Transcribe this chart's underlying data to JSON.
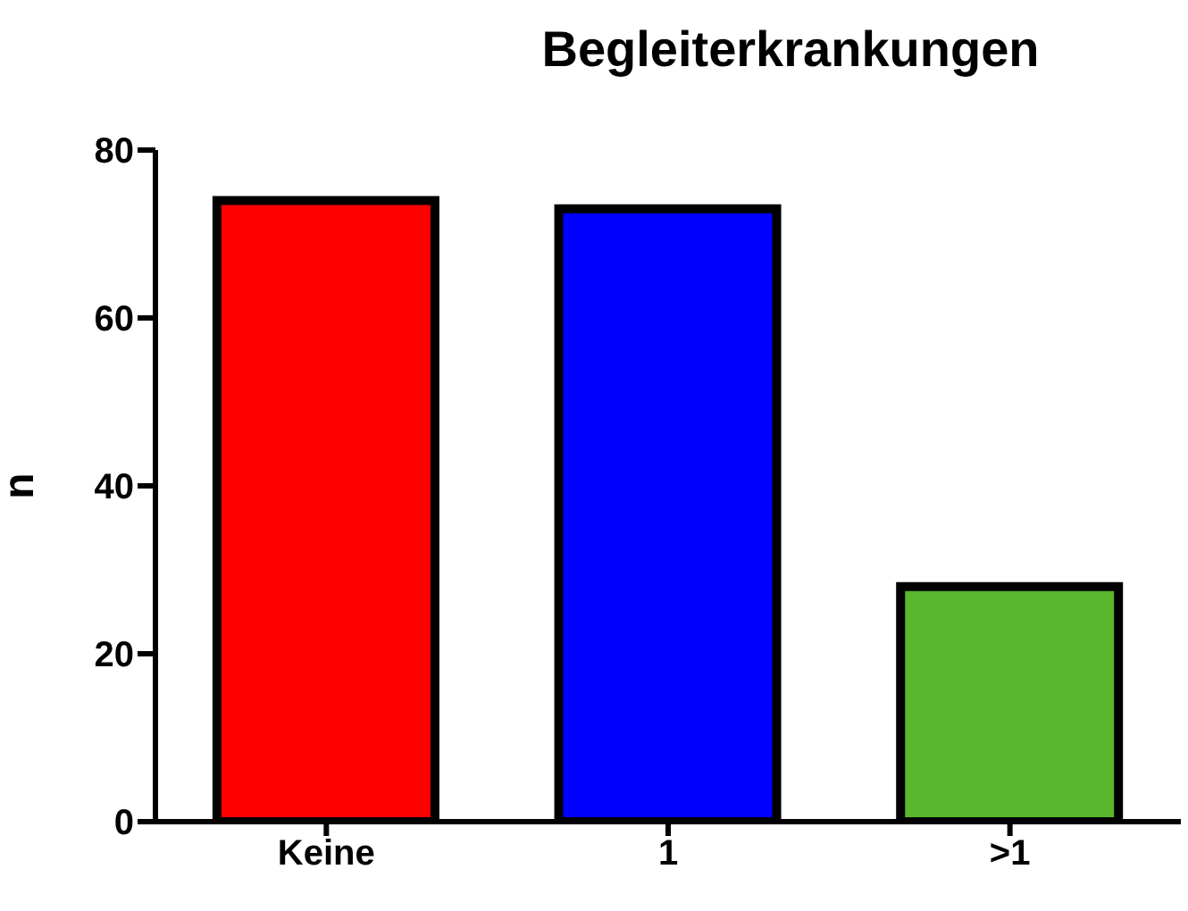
{
  "chart_data": {
    "type": "bar",
    "title": "Begleiterkrankungen",
    "ylabel": "n",
    "categories": [
      "Keine",
      "1",
      ">1"
    ],
    "values": [
      74,
      73,
      28
    ],
    "colors": [
      "#ff0000",
      "#0000ff",
      "#58b72c"
    ],
    "ylim": [
      0,
      80
    ],
    "yticks": [
      0,
      20,
      40,
      60,
      80
    ],
    "grid": false,
    "legend": false
  }
}
